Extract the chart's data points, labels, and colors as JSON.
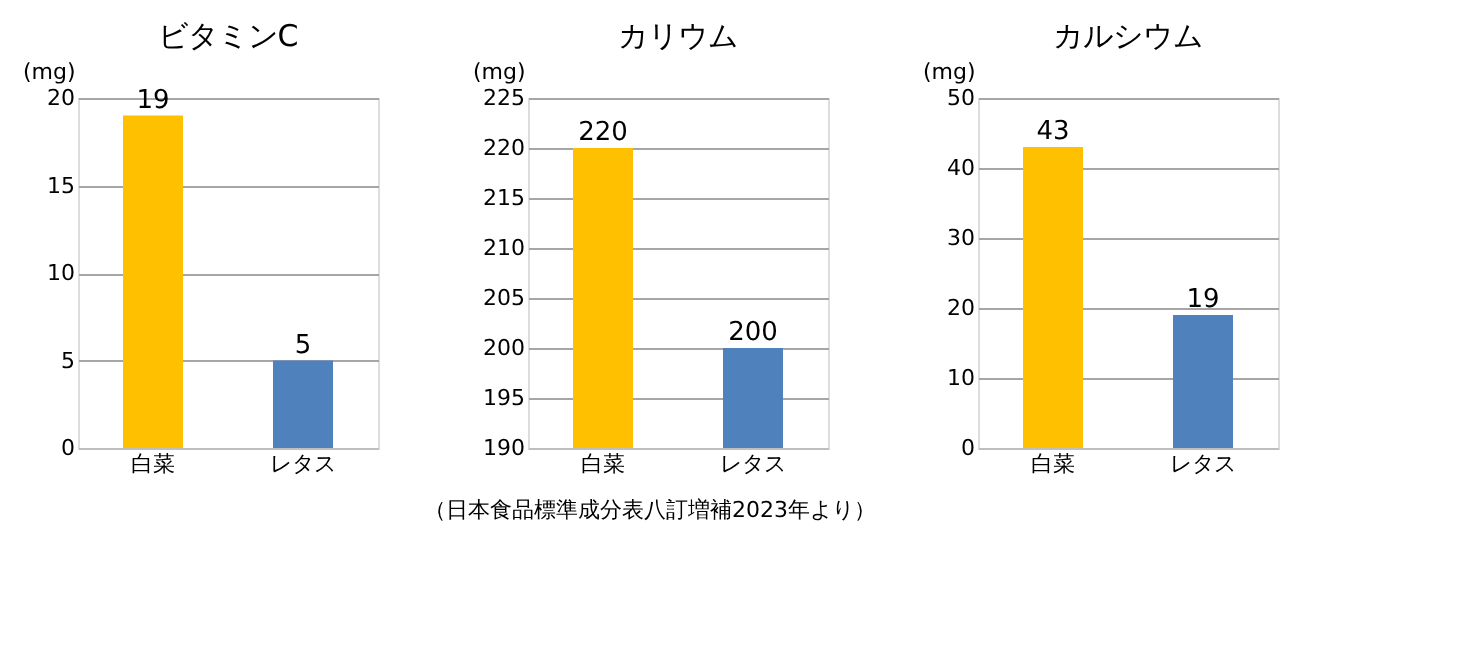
{
  "chart_data": [
    {
      "type": "bar",
      "title": "ビタミンC",
      "ylabel": "(mg)",
      "categories": [
        "白菜",
        "レタス"
      ],
      "values": [
        19,
        5
      ],
      "colors": [
        "#ffc000",
        "#4f81bd"
      ],
      "ylim": [
        0,
        20
      ],
      "yticks": [
        0,
        5,
        10,
        15,
        20
      ],
      "grid": "y",
      "data_labels": true
    },
    {
      "type": "bar",
      "title": "カリウム",
      "ylabel": "(mg)",
      "categories": [
        "白菜",
        "レタス"
      ],
      "values": [
        220,
        200
      ],
      "colors": [
        "#ffc000",
        "#4f81bd"
      ],
      "ylim": [
        190,
        225
      ],
      "yticks": [
        190,
        195,
        200,
        205,
        210,
        215,
        220,
        225
      ],
      "grid": "y",
      "data_labels": true,
      "annotations": [
        "（日本食品標準成分表八訂増補2023年より）"
      ]
    },
    {
      "type": "bar",
      "title": "カルシウム",
      "ylabel": "(mg)",
      "categories": [
        "白菜",
        "レタス"
      ],
      "values": [
        43,
        19
      ],
      "colors": [
        "#ffc000",
        "#4f81bd"
      ],
      "ylim": [
        0,
        50
      ],
      "yticks": [
        0,
        10,
        20,
        30,
        40,
        50
      ],
      "grid": "y",
      "data_labels": true
    }
  ]
}
